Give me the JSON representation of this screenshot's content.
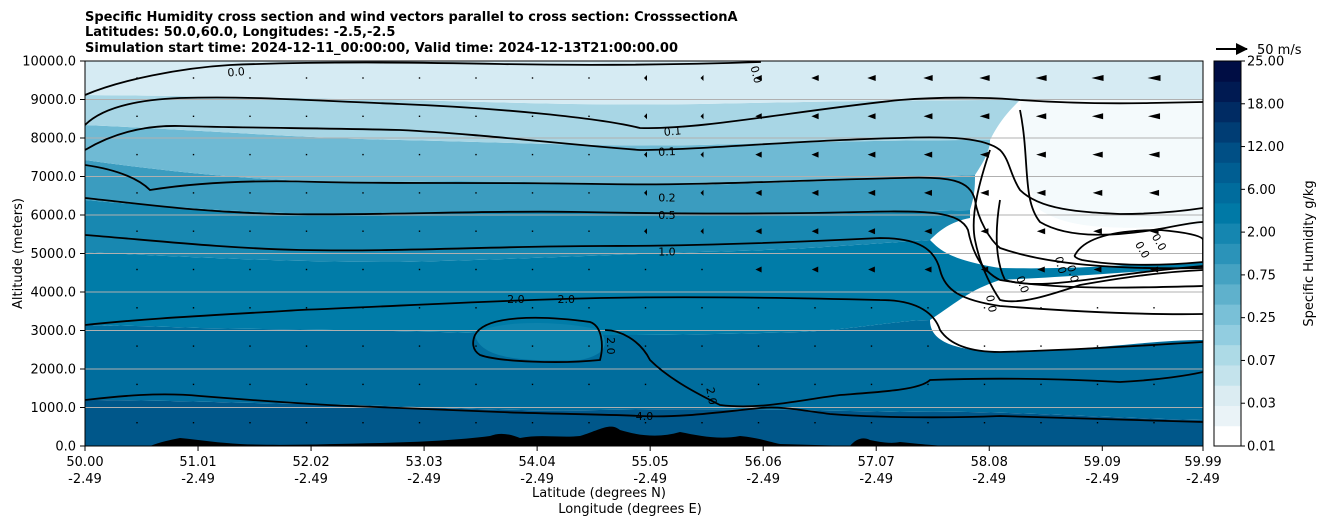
{
  "chart_data": {
    "type": "contour",
    "title_lines": [
      "Specific Humidity cross section and wind vectors parallel to cross section: CrosssectionA",
      "Latitudes: 50.0,60.0, Longitudes: -2.5,-2.5",
      "Simulation start time: 2024-12-11_00:00:00, Valid time: 2024-12-13T21:00:00.00"
    ],
    "xlabel_lines": [
      "Latitude (degrees N)",
      "Longitude (degrees E)"
    ],
    "ylabel": "Altitude (meters)",
    "xlim": [
      50.0,
      59.99
    ],
    "ylim": [
      0,
      10000
    ],
    "x_ticks": [
      {
        "lat": "50.00",
        "lon": "-2.49"
      },
      {
        "lat": "51.01",
        "lon": "-2.49"
      },
      {
        "lat": "52.02",
        "lon": "-2.49"
      },
      {
        "lat": "53.03",
        "lon": "-2.49"
      },
      {
        "lat": "54.04",
        "lon": "-2.49"
      },
      {
        "lat": "55.05",
        "lon": "-2.49"
      },
      {
        "lat": "56.06",
        "lon": "-2.49"
      },
      {
        "lat": "57.07",
        "lon": "-2.49"
      },
      {
        "lat": "58.08",
        "lon": "-2.49"
      },
      {
        "lat": "59.09",
        "lon": "-2.49"
      },
      {
        "lat": "59.99",
        "lon": "-2.49"
      }
    ],
    "y_ticks": [
      "0.0",
      "1000.0",
      "2000.0",
      "3000.0",
      "4000.0",
      "5000.0",
      "6000.0",
      "7000.0",
      "8000.0",
      "9000.0",
      "10000.0"
    ],
    "grid": "horizontal",
    "colorbar": {
      "label": "Specific Humidity g/kg",
      "tick_labels": [
        "0.01",
        "0.03",
        "0.07",
        "0.25",
        "0.75",
        "2.00",
        "6.00",
        "12.00",
        "18.00",
        "25.00"
      ],
      "colors": [
        "#ffffff",
        "#eaf3f7",
        "#dbecf2",
        "#c4e3ec",
        "#addae6",
        "#92cde0",
        "#79c0d7",
        "#5fb1cc",
        "#45a2c2",
        "#2b93b9",
        "#1586b0",
        "#0079a6",
        "#006c9d",
        "#005e92",
        "#004f85",
        "#003d74",
        "#002b63",
        "#001a52",
        "#000d44"
      ]
    },
    "quiver_key": {
      "label": "50 m/s",
      "speed": 50
    },
    "contour_labels": [
      {
        "text": "0.0",
        "x": 51.35,
        "y": 9720,
        "rot": -5
      },
      {
        "text": "0.0",
        "x": 56.0,
        "y": 9650,
        "rot": 75
      },
      {
        "text": "0.1",
        "x": 55.25,
        "y": 8180,
        "rot": -5
      },
      {
        "text": "0.1",
        "x": 55.2,
        "y": 7650,
        "rot": -3
      },
      {
        "text": "0.2",
        "x": 55.2,
        "y": 6450,
        "rot": 0
      },
      {
        "text": "0.5",
        "x": 55.2,
        "y": 6000,
        "rot": 0
      },
      {
        "text": "1.0",
        "x": 55.2,
        "y": 5050,
        "rot": 0
      },
      {
        "text": "2.0",
        "x": 53.85,
        "y": 3820,
        "rot": 0
      },
      {
        "text": "2.0",
        "x": 54.3,
        "y": 3820,
        "rot": 0
      },
      {
        "text": "2.0",
        "x": 54.7,
        "y": 2600,
        "rot": 90
      },
      {
        "text": "2.0",
        "x": 55.6,
        "y": 1300,
        "rot": 80
      },
      {
        "text": "4.0",
        "x": 55.0,
        "y": 780,
        "rot": 0
      },
      {
        "text": "0.0",
        "x": 59.6,
        "y": 5300,
        "rot": 60
      },
      {
        "text": "0.0",
        "x": 59.45,
        "y": 5100,
        "rot": 60
      },
      {
        "text": "0.0",
        "x": 58.72,
        "y": 4700,
        "rot": 75
      },
      {
        "text": "0.0",
        "x": 58.83,
        "y": 4480,
        "rot": 75
      },
      {
        "text": "0.0",
        "x": 58.38,
        "y": 4200,
        "rot": 70
      },
      {
        "text": "0.0",
        "x": 58.1,
        "y": 3700,
        "rot": 80
      }
    ],
    "levels_shown": [
      0.0,
      0.1,
      0.2,
      0.5,
      1.0,
      2.0,
      4.0
    ]
  }
}
